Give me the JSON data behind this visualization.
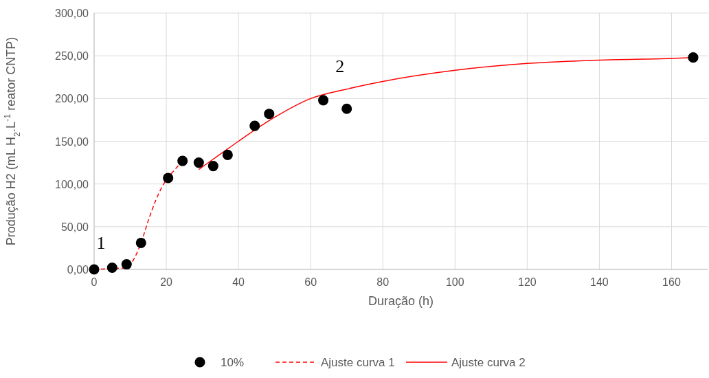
{
  "chart_data": {
    "type": "scatter",
    "xlabel": "Duração (h)",
    "ylabel": "Produção H2 (mL H$_{2}$.L$^{-1}$  reator CNTP)",
    "xlim": [
      0,
      170
    ],
    "xticks": [
      0,
      20,
      40,
      60,
      80,
      100,
      120,
      140,
      160
    ],
    "ylim": [
      0,
      300
    ],
    "yticks": [
      {
        "value": 0,
        "label": "0,00"
      },
      {
        "value": 50,
        "label": "50,00"
      },
      {
        "value": 100,
        "label": "100,00"
      },
      {
        "value": 150,
        "label": "150,00"
      },
      {
        "value": 200,
        "label": "200,00"
      },
      {
        "value": 250,
        "label": "250,00"
      },
      {
        "value": 300,
        "label": "300,00"
      }
    ],
    "grid": true,
    "legend": "bottom",
    "series": [
      {
        "name": "10%",
        "color": "#000000",
        "marker": "circle",
        "x": [
          0,
          5,
          9,
          13,
          20.5,
          24.5,
          29,
          33,
          37,
          44.5,
          48.5,
          63.5,
          70,
          166
        ],
        "values": [
          0,
          2,
          6,
          31,
          107,
          127,
          125,
          121,
          134,
          168,
          182,
          198,
          188,
          248
        ]
      },
      {
        "name": "Ajuste curva 1",
        "type": "line",
        "color": "#ff0000",
        "line_style": "dashed",
        "x": [
          0,
          5,
          9,
          11,
          13,
          15,
          17,
          20,
          22,
          24.5
        ],
        "values": [
          0,
          1,
          2,
          12,
          31,
          57,
          80,
          105,
          115,
          127
        ]
      },
      {
        "name": "Ajuste curva 2",
        "type": "line",
        "color": "#ff0000",
        "line_style": "solid",
        "x": [
          29,
          35,
          40,
          50,
          60,
          70,
          80,
          100,
          120,
          140,
          160,
          166
        ],
        "values": [
          117,
          135,
          150,
          178,
          200,
          211,
          220,
          233,
          241,
          245,
          247,
          248
        ]
      }
    ],
    "annotations": [
      "1",
      "2"
    ]
  }
}
